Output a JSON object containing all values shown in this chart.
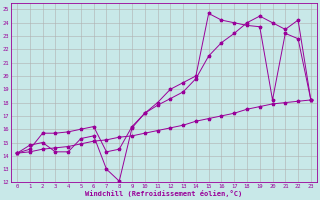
{
  "xlabel": "Windchill (Refroidissement éolien,°C)",
  "background_color": "#c8e8e8",
  "grid_color": "#b0b0b0",
  "line_color": "#990099",
  "xlim": [
    -0.5,
    23.5
  ],
  "ylim": [
    12,
    25.5
  ],
  "yticks": [
    12,
    13,
    14,
    15,
    16,
    17,
    18,
    19,
    20,
    21,
    22,
    23,
    24,
    25
  ],
  "xticks": [
    0,
    1,
    2,
    3,
    4,
    5,
    6,
    7,
    8,
    9,
    10,
    11,
    12,
    13,
    14,
    15,
    16,
    17,
    18,
    19,
    20,
    21,
    22,
    23
  ],
  "line1_x": [
    0,
    1,
    2,
    3,
    4,
    5,
    6,
    7,
    8,
    9,
    10,
    11,
    12,
    13,
    14,
    15,
    16,
    17,
    18,
    19,
    20,
    21,
    22,
    23
  ],
  "line1_y": [
    14.2,
    14.8,
    15.0,
    14.3,
    14.3,
    15.3,
    15.5,
    13.0,
    12.1,
    16.1,
    17.2,
    18.0,
    19.0,
    19.5,
    20.0,
    24.7,
    24.2,
    24.0,
    23.8,
    23.7,
    18.2,
    23.2,
    22.8,
    18.2
  ],
  "line2_x": [
    0,
    1,
    2,
    3,
    4,
    5,
    6,
    7,
    8,
    9,
    10,
    11,
    12,
    13,
    14,
    15,
    16,
    17,
    18,
    19,
    20,
    21,
    22,
    23
  ],
  "line2_y": [
    14.2,
    14.5,
    15.7,
    15.7,
    15.8,
    16.0,
    16.2,
    14.3,
    14.5,
    16.2,
    17.2,
    17.8,
    18.3,
    18.8,
    19.8,
    21.5,
    22.5,
    23.2,
    24.0,
    24.5,
    24.0,
    23.5,
    24.2,
    18.2
  ],
  "line3_x": [
    0,
    1,
    2,
    3,
    4,
    5,
    6,
    7,
    8,
    9,
    10,
    11,
    12,
    13,
    14,
    15,
    16,
    17,
    18,
    19,
    20,
    21,
    22,
    23
  ],
  "line3_y": [
    14.2,
    14.3,
    14.5,
    14.6,
    14.7,
    14.9,
    15.1,
    15.2,
    15.4,
    15.5,
    15.7,
    15.9,
    16.1,
    16.3,
    16.6,
    16.8,
    17.0,
    17.2,
    17.5,
    17.7,
    17.9,
    18.0,
    18.1,
    18.2
  ]
}
